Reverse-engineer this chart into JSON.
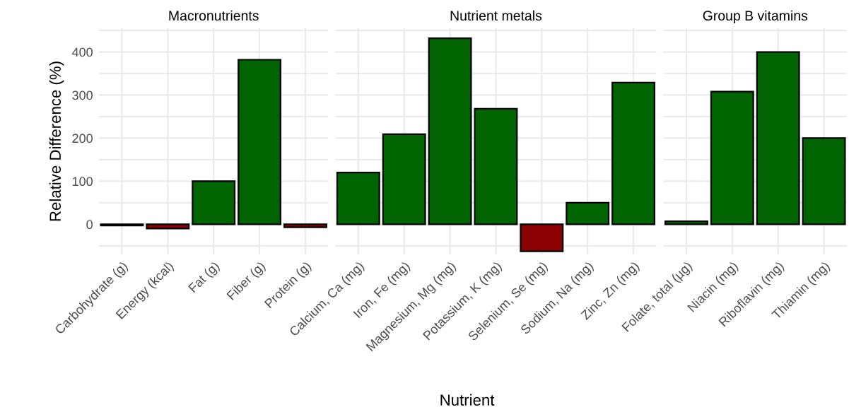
{
  "chart_data": [
    {
      "type": "bar",
      "title": "Macronutrients",
      "ylabel": "Relative Difference (%)",
      "categories": [
        "Carbohydrate (g)",
        "Energy (kcal)",
        "Fat (g)",
        "Fiber (g)",
        "Protein (g)"
      ],
      "values": [
        -3,
        -10,
        100,
        382,
        -7
      ],
      "colors": [
        "#8b0000",
        "#8b0000",
        "#006400",
        "#006400",
        "#8b0000"
      ],
      "ylim": [
        -70,
        455
      ],
      "yticks": [
        {
          "value": -50,
          "label": null
        },
        0,
        {
          "value": 50,
          "label": null
        },
        100,
        {
          "value": 150,
          "label": null
        },
        200,
        {
          "value": 250,
          "label": null
        },
        300,
        {
          "value": 350,
          "label": null
        },
        400,
        {
          "value": 450,
          "label": null
        }
      ],
      "grid": true
    },
    {
      "type": "bar",
      "title": "Nutrient metals",
      "xlabel": "Nutrient",
      "categories": [
        "Calcium, Ca (mg)",
        "Iron, Fe (mg)",
        "Magnesium, Mg (mg)",
        "Potassium, K (mg)",
        "Selenium, Se (mg)",
        "Sodium, Na (mg)",
        "Zinc, Zn (mg)"
      ],
      "values": [
        120,
        209,
        432,
        268,
        -63,
        50,
        329
      ],
      "colors": [
        "#006400",
        "#006400",
        "#006400",
        "#006400",
        "#8b0000",
        "#006400",
        "#006400"
      ],
      "ylim": [
        -70,
        455
      ],
      "yticks": [
        {
          "value": -50,
          "label": null
        },
        0,
        {
          "value": 50,
          "label": null
        },
        100,
        {
          "value": 150,
          "label": null
        },
        200,
        {
          "value": 250,
          "label": null
        },
        300,
        {
          "value": 350,
          "label": null
        },
        400,
        {
          "value": 450,
          "label": null
        }
      ],
      "grid": true,
      "tick_labels": "x"
    },
    {
      "type": "bar",
      "title": "Group B vitamins",
      "categories": [
        "Folate, total (µg)",
        "Niacin (mg)",
        "Riboflavin (mg)",
        "Thiamin (mg)"
      ],
      "values": [
        7,
        308,
        400,
        200
      ],
      "colors": [
        "#006400",
        "#006400",
        "#006400",
        "#006400"
      ],
      "ylim": [
        -70,
        455
      ],
      "yticks": [
        {
          "value": -50,
          "label": null
        },
        0,
        {
          "value": 50,
          "label": null
        },
        100,
        {
          "value": 150,
          "label": null
        },
        200,
        {
          "value": 250,
          "label": null
        },
        300,
        {
          "value": 350,
          "label": null
        },
        400,
        {
          "value": 450,
          "label": null
        }
      ],
      "grid": true,
      "tick_labels": "x"
    }
  ]
}
